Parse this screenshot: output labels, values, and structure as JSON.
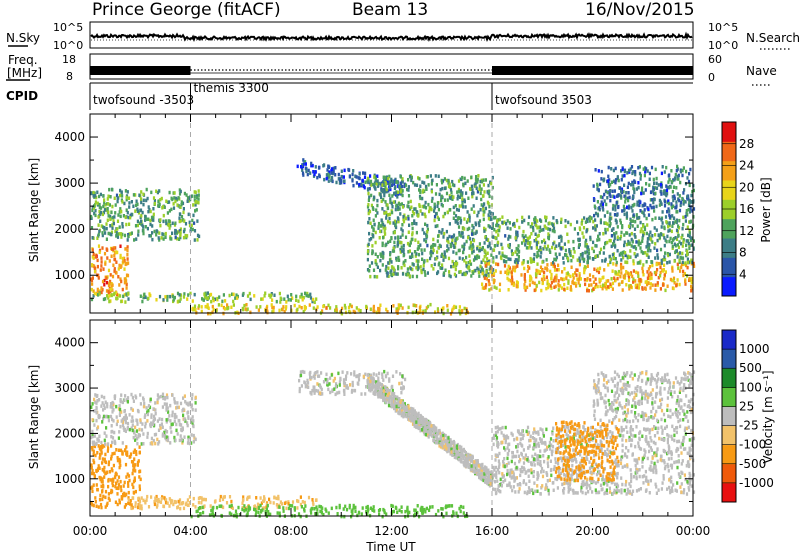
{
  "header": {
    "station": "Prince George (fitACF)",
    "beam": "Beam 13",
    "date": "16/Nov/2015"
  },
  "top_panels": {
    "nsky_label": "N.Sky",
    "nsky_ticks": [
      "10^5",
      "10^0"
    ],
    "nsearch_label": "N.Search",
    "nsearch_ticks": [
      "10^5",
      "10^0"
    ],
    "freq_label_1": "Freq.",
    "freq_label_2": "[MHz]",
    "freq_ticks": [
      "18",
      "8"
    ],
    "nave_label": "Nave",
    "nave_ticks": [
      "60",
      "0"
    ],
    "cpid_label": "CPID",
    "cpid_segments": [
      {
        "label": "twofsound -3503",
        "start_hour": 0,
        "end_hour": 4
      },
      {
        "label": "themis 3300",
        "start_hour": 4,
        "end_hour": 16
      },
      {
        "label": "twofsound 3503",
        "start_hour": 16,
        "end_hour": 24
      }
    ]
  },
  "chart_data": [
    {
      "type": "heatmap",
      "name": "power",
      "x": {
        "label": "",
        "unit": "hours UT",
        "range": [
          0,
          24
        ],
        "ticks": [
          0,
          4,
          8,
          12,
          16,
          20,
          24
        ]
      },
      "y": {
        "label": "Slant Range [km]",
        "range": [
          180,
          4500
        ],
        "ticks": [
          1000,
          2000,
          3000,
          4000
        ]
      },
      "colorbar": {
        "label": "Power [dB]",
        "range": [
          0,
          32
        ],
        "ticks": [
          4,
          8,
          12,
          16,
          20,
          24,
          28
        ]
      },
      "features": [
        {
          "t0": 0.0,
          "t1": 1.5,
          "r0": 600,
          "r1": 1700,
          "value": 24
        },
        {
          "t0": 0.0,
          "t1": 4.3,
          "r0": 1800,
          "r1": 2900,
          "value": 12
        },
        {
          "t0": 0.0,
          "t1": 9.0,
          "r0": 450,
          "r1": 650,
          "value": 14
        },
        {
          "t0": 4.0,
          "t1": 15.0,
          "r0": 200,
          "r1": 400,
          "value": 20
        },
        {
          "t0": 8.2,
          "t1": 12.5,
          "r0": 2900,
          "r1": 3400,
          "value": 6
        },
        {
          "t0": 11.0,
          "t1": 16.0,
          "r0": 1000,
          "r1": 3200,
          "value": 12
        },
        {
          "t0": 15.5,
          "t1": 24.0,
          "r0": 700,
          "r1": 1300,
          "value": 22
        },
        {
          "t0": 16.0,
          "t1": 24.0,
          "r0": 1300,
          "r1": 2300,
          "value": 12
        },
        {
          "t0": 20.0,
          "t1": 24.0,
          "r0": 2300,
          "r1": 3400,
          "value": 8
        }
      ]
    },
    {
      "type": "heatmap",
      "name": "velocity",
      "x": {
        "label": "Time UT",
        "unit": "hours UT",
        "range": [
          0,
          24
        ],
        "ticks": [
          0,
          4,
          8,
          12,
          16,
          20,
          24
        ],
        "tick_labels": [
          "00:00",
          "04:00",
          "08:00",
          "12:00",
          "16:00",
          "20:00",
          "00:00"
        ]
      },
      "y": {
        "label": "Slant Range [km]",
        "range": [
          180,
          4500
        ],
        "ticks": [
          1000,
          2000,
          3000,
          4000
        ]
      },
      "colorbar": {
        "label": "Velocity [m s⁻¹]",
        "levels": [
          "-1000",
          "-500",
          "-100",
          "-25",
          "25",
          "100",
          "500",
          "1000"
        ]
      },
      "features": [
        {
          "t0": 0.0,
          "t1": 2.0,
          "r0": 400,
          "r1": 1800,
          "value": -300
        },
        {
          "t0": 1.5,
          "t1": 9.0,
          "r0": 380,
          "r1": 650,
          "value": -80
        },
        {
          "t0": 0.0,
          "t1": 4.2,
          "r0": 1800,
          "r1": 2900,
          "value": 0
        },
        {
          "t0": 4.0,
          "t1": 15.0,
          "r0": 200,
          "r1": 450,
          "value": 60
        },
        {
          "t0": 8.2,
          "t1": 12.5,
          "r0": 2900,
          "r1": 3400,
          "value": 0
        },
        {
          "t0": 11.0,
          "t1": 16.0,
          "r0": 1000,
          "r1": 3200,
          "value": 0
        },
        {
          "t0": 16.0,
          "t1": 24.0,
          "r0": 700,
          "r1": 2200,
          "value": 0
        },
        {
          "t0": 18.5,
          "t1": 21.0,
          "r0": 1000,
          "r1": 2300,
          "value": -200
        },
        {
          "t0": 20.0,
          "t1": 24.0,
          "r0": 2300,
          "r1": 3400,
          "value": 0
        }
      ]
    }
  ],
  "colors": {
    "power_scale": [
      "#0a1bff",
      "#2a55a8",
      "#3c7d86",
      "#4ea35c",
      "#9ccf2a",
      "#e8d419",
      "#f4a018",
      "#f06818",
      "#e01010"
    ],
    "velocity_scale": [
      "#e81010",
      "#f05a0a",
      "#f79a14",
      "#f2c26a",
      "#bdbdbd",
      "#5cc23c",
      "#1c8a2a",
      "#2a5aa8",
      "#1a2ac8"
    ]
  }
}
